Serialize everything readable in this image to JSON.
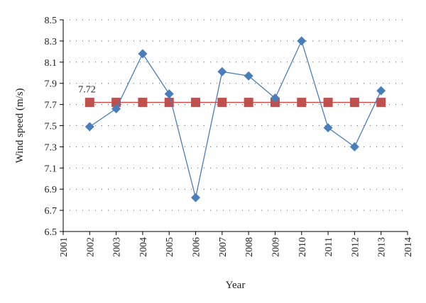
{
  "chart_data": {
    "type": "line",
    "xlabel": "Year",
    "ylabel": "Wind speed (m/s)",
    "xlim": [
      2001,
      2014
    ],
    "ylim": [
      6.5,
      8.5
    ],
    "x_ticks": [
      "2001",
      "2002",
      "2003",
      "2004",
      "2005",
      "2006",
      "2007",
      "2008",
      "2009",
      "2010",
      "2011",
      "2012",
      "2013",
      "2014"
    ],
    "y_ticks": [
      "6.5",
      "6.7",
      "6.9",
      "7.1",
      "7.3",
      "7.5",
      "7.7",
      "7.9",
      "8.1",
      "8.3",
      "8.5"
    ],
    "grid": "horizontal dotted",
    "series": [
      {
        "marker": "diamond",
        "color": "#4a7ebb",
        "x": [
          2002,
          2003,
          2004,
          2005,
          2006,
          2007,
          2008,
          2009,
          2010,
          2011,
          2012,
          2013
        ],
        "y": [
          7.49,
          7.66,
          8.18,
          7.8,
          6.82,
          8.01,
          7.97,
          7.76,
          8.3,
          7.48,
          7.3,
          7.83
        ]
      },
      {
        "marker": "square",
        "color": "#c0504d",
        "x": [
          2002,
          2003,
          2004,
          2005,
          2006,
          2007,
          2008,
          2009,
          2010,
          2011,
          2012,
          2013
        ],
        "y": [
          7.72,
          7.72,
          7.72,
          7.72,
          7.72,
          7.72,
          7.72,
          7.72,
          7.72,
          7.72,
          7.72,
          7.72
        ]
      }
    ],
    "annotation": "7.72"
  }
}
